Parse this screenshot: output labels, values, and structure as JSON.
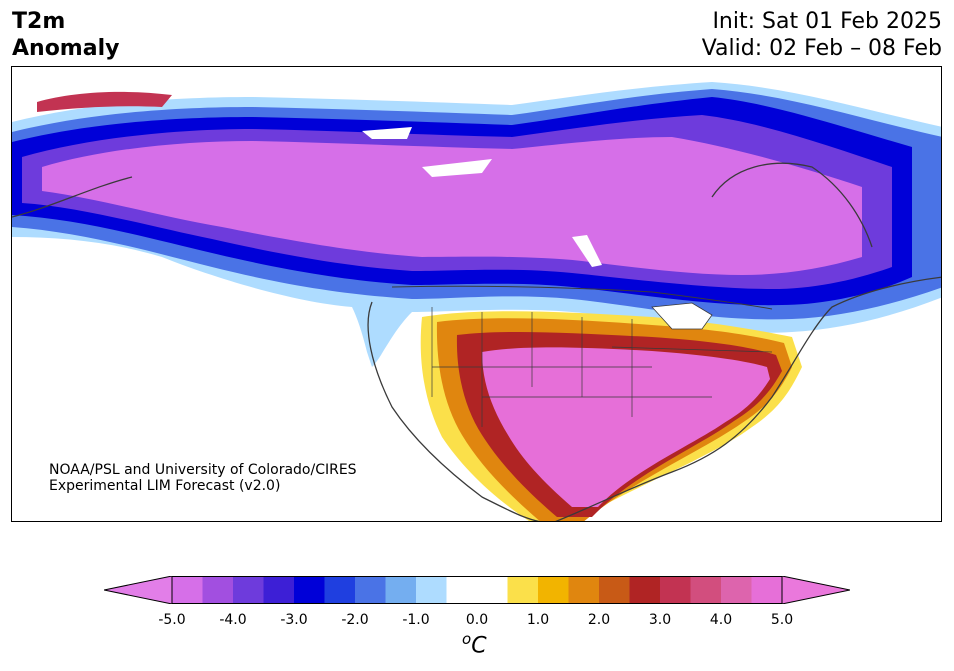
{
  "header": {
    "title_line1": "T2m",
    "title_line2": "Anomaly",
    "init": "Init: Sat 01 Feb 2025",
    "valid": "Valid: 02 Feb – 08 Feb"
  },
  "credit": {
    "line1": "NOAA/PSL and University of Colorado/CIRES",
    "line2": "Experimental LIM Forecast (v2.0)"
  },
  "colorbar": {
    "ticks": [
      "-5.0",
      "-4.0",
      "-3.0",
      "-2.0",
      "-1.0",
      "0.0",
      "1.0",
      "2.0",
      "3.0",
      "4.0",
      "5.0"
    ],
    "unit_base": "C",
    "unit_sup": "o",
    "min": -5.0,
    "max": 5.0,
    "step": 0.5,
    "colors": [
      "#d66fe8",
      "#a24fe0",
      "#6e3bdc",
      "#3d1fd6",
      "#0000d8",
      "#1f3fe0",
      "#4a73e6",
      "#74aef0",
      "#aedcff",
      "#ffffff",
      "#ffffff",
      "#fbe04a",
      "#f2b400",
      "#e0860f",
      "#c85a16",
      "#b02424",
      "#c23352",
      "#d24e7e",
      "#dd64ad",
      "#e66fd8"
    ],
    "extend_low_color": "#e27ee8",
    "extend_high_color": "#ea78dc"
  },
  "map": {
    "land_fill": "#ffffff",
    "ocean_fill": "#ffffff",
    "coastline_color": "#3a3a3a",
    "border_color": "#3a3a3a"
  }
}
